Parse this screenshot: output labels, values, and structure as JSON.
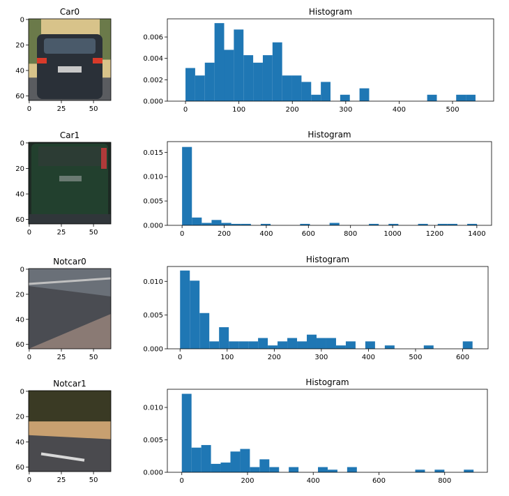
{
  "figure": {
    "bar_color": "#1f77b4",
    "axis_color": "#000000"
  },
  "chart_data": [
    {
      "type": "image",
      "title": "Car0",
      "xticks": [
        "0",
        "25",
        "50"
      ],
      "yticks": [
        "0",
        "20",
        "40",
        "60"
      ],
      "xlim": [
        -0.5,
        63.5
      ],
      "ylim": [
        63.5,
        -0.5
      ],
      "image_palette": {
        "sky": "#d8c38a",
        "tree": "#6b7a4a",
        "body": "#2a3038",
        "window": "#4a5a6a",
        "light": "#d83a2a",
        "plate": "#c8c8c8",
        "road": "#5a5c60"
      }
    },
    {
      "type": "bar",
      "title": "Histogram",
      "xlim": [
        -34,
        577
      ],
      "ylim": [
        0,
        0.0077
      ],
      "xticks": [
        0,
        100,
        200,
        300,
        400,
        500
      ],
      "yticks": [
        0.0,
        0.002,
        0.004,
        0.006
      ],
      "ytick_labels": [
        "0.000",
        "0.002",
        "0.004",
        "0.006"
      ],
      "bin_start": 0,
      "bin_width": 18.1,
      "values": [
        0.0031,
        0.0024,
        0.0036,
        0.0073,
        0.0048,
        0.0067,
        0.0043,
        0.0036,
        0.0043,
        0.0055,
        0.0024,
        0.0024,
        0.0018,
        0.0006,
        0.0018,
        0,
        0.0006,
        0,
        0.0012,
        0,
        0,
        0,
        0,
        0,
        0,
        0.0006,
        0,
        0,
        0.0006,
        0.0006
      ]
    },
    {
      "type": "image",
      "title": "Car1",
      "xticks": [
        "0",
        "25",
        "50"
      ],
      "yticks": [
        "0",
        "20",
        "40",
        "60"
      ],
      "xlim": [
        -0.5,
        63.5
      ],
      "ylim": [
        63.5,
        -0.5
      ],
      "image_palette": {
        "bg": "#1e2a24",
        "body": "#22402e",
        "window": "#2c3c34",
        "light": "#b03a3a",
        "plate": "#6a7a72",
        "road": "#30363a"
      }
    },
    {
      "type": "bar",
      "title": "Histogram",
      "xlim": [
        -70,
        1470
      ],
      "ylim": [
        0,
        0.0172
      ],
      "xticks": [
        0,
        200,
        400,
        600,
        800,
        1000,
        1200,
        1400
      ],
      "yticks": [
        0.0,
        0.005,
        0.01,
        0.015
      ],
      "ytick_labels": [
        "0.000",
        "0.005",
        "0.010",
        "0.015"
      ],
      "bin_start": 0,
      "bin_width": 46.7,
      "values": [
        0.0161,
        0.0016,
        0.0005,
        0.0011,
        0.0005,
        0.0003,
        0.0003,
        0,
        0.0003,
        0,
        0,
        0,
        0.0003,
        0,
        0,
        0.0005,
        0,
        0,
        0,
        0.0003,
        0,
        0.0003,
        0,
        0,
        0.0003,
        0,
        0.0003,
        0.0003,
        0,
        0.0003
      ]
    },
    {
      "type": "image",
      "title": "Notcar0",
      "xticks": [
        "0",
        "25",
        "50"
      ],
      "yticks": [
        "0",
        "20",
        "40",
        "60"
      ],
      "xlim": [
        -0.5,
        63.5
      ],
      "ylim": [
        63.5,
        -0.5
      ],
      "image_palette": {
        "top": "#6a7078",
        "wall": "#4a4c52",
        "ground": "#8a7a74",
        "rail": "#c0c0c0"
      }
    },
    {
      "type": "bar",
      "title": "Histogram",
      "xlim": [
        -27,
        654
      ],
      "ylim": [
        0,
        0.0122
      ],
      "xticks": [
        0,
        100,
        200,
        300,
        400,
        500,
        600
      ],
      "yticks": [
        0.0,
        0.005,
        0.01
      ],
      "ytick_labels": [
        "0.000",
        "0.005",
        "0.010"
      ],
      "bin_start": 0,
      "bin_width": 20.7,
      "values": [
        0.0116,
        0.0101,
        0.0053,
        0.0011,
        0.0032,
        0.0011,
        0.0011,
        0.0011,
        0.0016,
        0.0005,
        0.0011,
        0.0016,
        0.0011,
        0.0021,
        0.0016,
        0.0016,
        0.0005,
        0.0011,
        0,
        0.0011,
        0,
        0.0005,
        0,
        0,
        0,
        0.0005,
        0,
        0,
        0,
        0.0011
      ]
    },
    {
      "type": "image",
      "title": "Notcar1",
      "xticks": [
        "0",
        "25",
        "50"
      ],
      "yticks": [
        "0",
        "20",
        "40",
        "60"
      ],
      "xlim": [
        -0.5,
        63.5
      ],
      "ylim": [
        63.5,
        -0.5
      ],
      "image_palette": {
        "trees": "#3a3a24",
        "grass": "#c8a070",
        "road": "#4a4a4e",
        "line": "#d8d8d8"
      }
    },
    {
      "type": "bar",
      "title": "Histogram",
      "xlim": [
        -44,
        930
      ],
      "ylim": [
        0,
        0.0128
      ],
      "xticks": [
        0,
        200,
        400,
        600,
        800
      ],
      "yticks": [
        0.0,
        0.005,
        0.01
      ],
      "ytick_labels": [
        "0.000",
        "0.005",
        "0.010"
      ],
      "bin_start": 0,
      "bin_width": 29.6,
      "values": [
        0.0121,
        0.0038,
        0.0042,
        0.0013,
        0.0015,
        0.0032,
        0.0036,
        0.0008,
        0.002,
        0.0008,
        0,
        0.0008,
        0,
        0,
        0.0008,
        0.0004,
        0,
        0.0008,
        0,
        0,
        0,
        0,
        0,
        0,
        0.0004,
        0,
        0.0004,
        0,
        0,
        0.0004
      ]
    }
  ]
}
